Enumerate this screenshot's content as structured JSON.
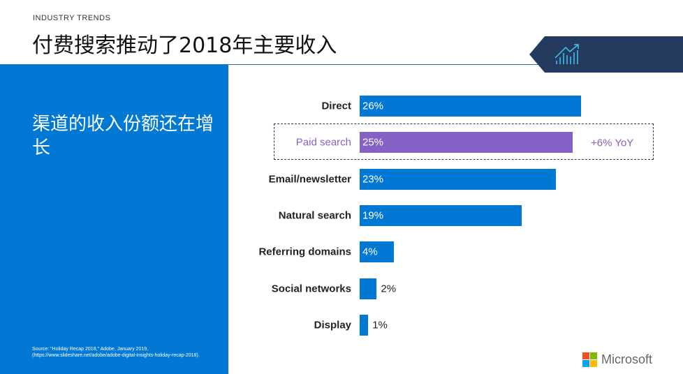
{
  "header": {
    "eyebrow": "INDUSTRY TRENDS",
    "title": "付费搜索推动了2018年主要收入"
  },
  "sidebar": {
    "subtitle": "渠道的收入份额还在增长",
    "source": "Source: \"Holiday Recap 2018,\" Adobe, January 2019, (https://www.slideshare.net/adobe/adobe-digital-insights-holiday-recap-2018)."
  },
  "icons": {
    "badge": "chart-trend-up-icon",
    "logo": "microsoft-logo"
  },
  "colors": {
    "bar": "#0078d4",
    "highlight": "#8661c5",
    "badge": "#243a5e"
  },
  "chart_data": {
    "type": "bar",
    "orientation": "horizontal",
    "categories": [
      "Direct",
      "Paid search",
      "Email/newsletter",
      "Natural search",
      "Referring domains",
      "Social networks",
      "Display"
    ],
    "values": [
      26,
      25,
      23,
      19,
      4,
      2,
      1
    ],
    "value_labels": [
      "26%",
      "25%",
      "23%",
      "19%",
      "4%",
      "2%",
      "1%"
    ],
    "highlight": {
      "category": "Paid search",
      "annotation": "+6% YoY"
    },
    "unit": "%"
  },
  "footer": {
    "brand": "Microsoft"
  }
}
